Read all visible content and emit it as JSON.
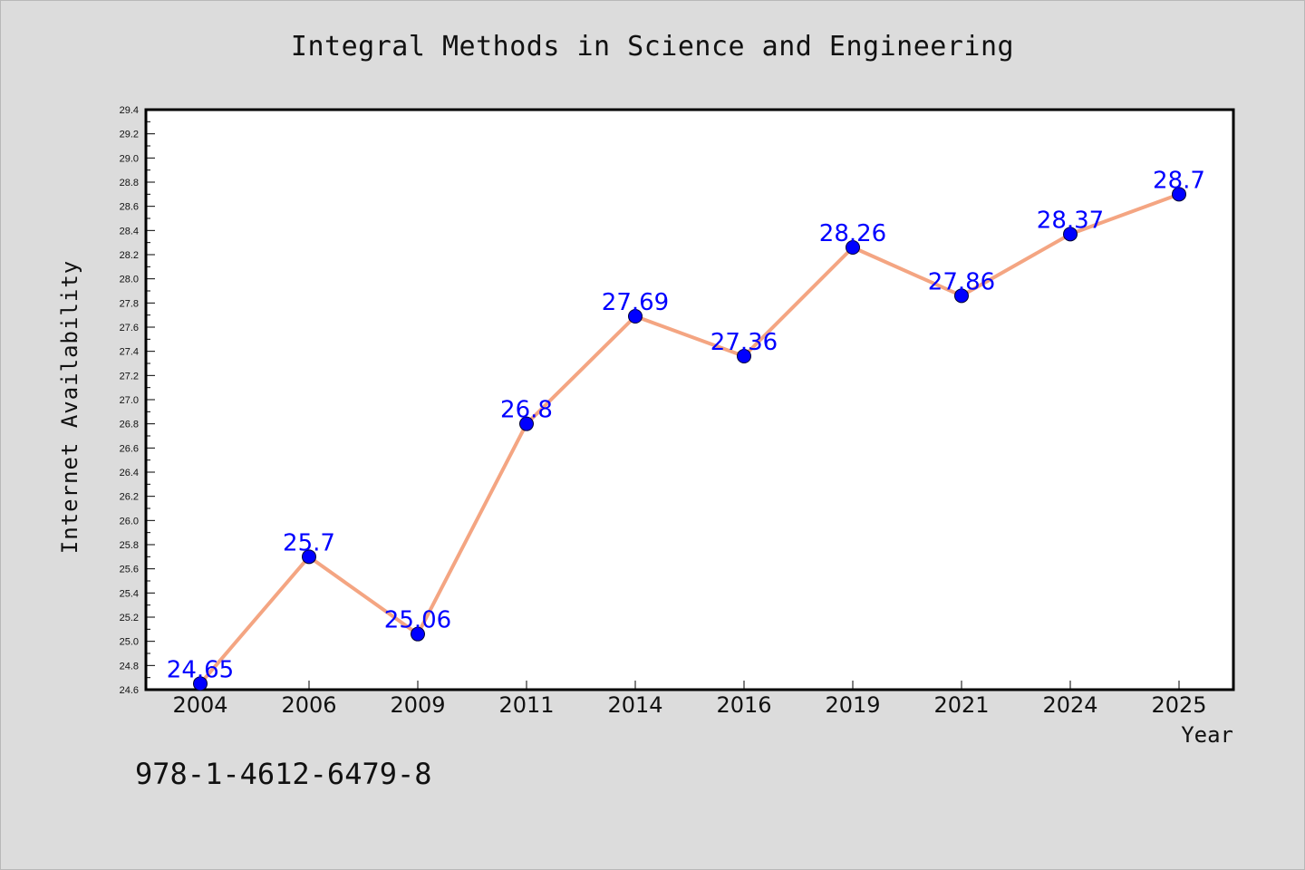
{
  "chart_data": {
    "type": "line",
    "title": "Integral Methods in Science and Engineering",
    "xlabel": "Year",
    "ylabel": "Internet Availability",
    "categories": [
      "2004",
      "2006",
      "2009",
      "2011",
      "2014",
      "2016",
      "2019",
      "2021",
      "2024",
      "2025"
    ],
    "values": [
      24.65,
      25.7,
      25.06,
      26.8,
      27.69,
      27.36,
      28.26,
      27.86,
      28.37,
      28.7
    ],
    "data_labels": [
      "24.65",
      "25.7",
      "25.06",
      "26.8",
      "27.69",
      "27.36",
      "28.26",
      "27.86",
      "28.37",
      "28.7"
    ],
    "ylim": [
      24.6,
      29.4
    ],
    "yticks": [
      "24.6",
      "24.8",
      "25.0",
      "25.2",
      "25.4",
      "25.6",
      "25.8",
      "26.0",
      "26.2",
      "26.4",
      "26.6",
      "26.8",
      "27.0",
      "27.2",
      "27.4",
      "27.6",
      "27.8",
      "28.0",
      "28.2",
      "28.4",
      "28.6",
      "28.8",
      "29.0",
      "29.2",
      "29.4"
    ],
    "grid": false,
    "line_color": "#f4a582",
    "marker_color": "#0000ff",
    "label_color": "#0000ff"
  },
  "footer": {
    "isbn": "978-1-4612-6479-8"
  }
}
